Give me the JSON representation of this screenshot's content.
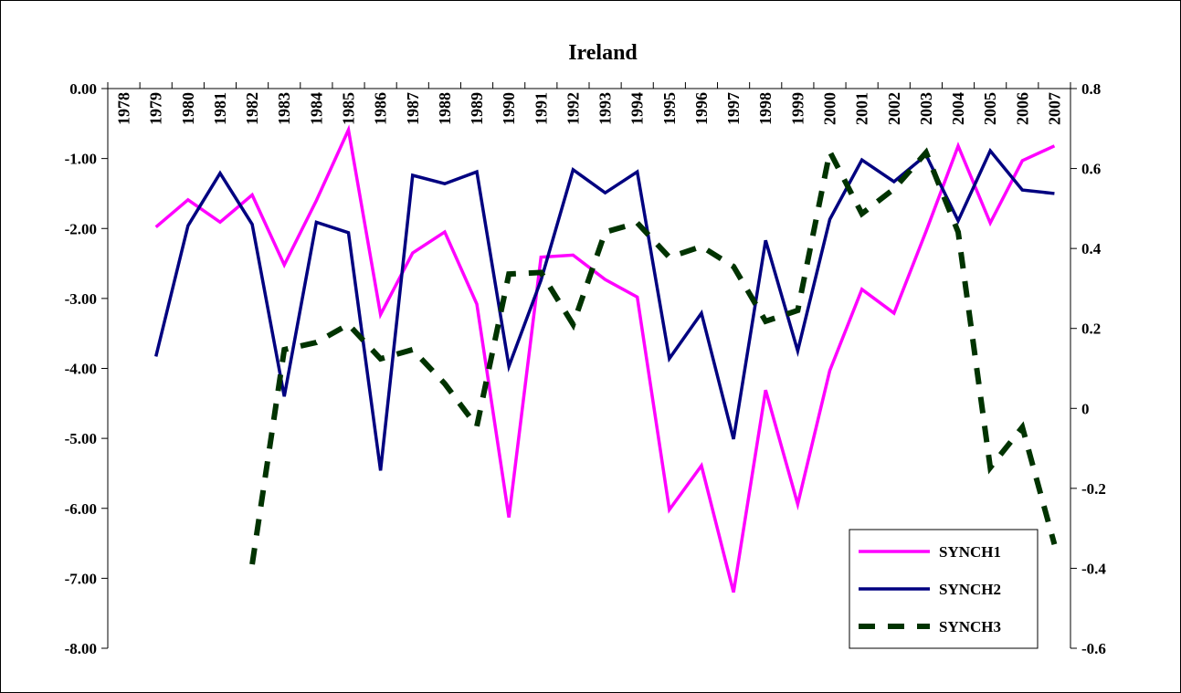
{
  "chart_data": {
    "type": "line",
    "title": "Ireland",
    "categories": [
      "1978",
      "1979",
      "1980",
      "1981",
      "1982",
      "1983",
      "1984",
      "1985",
      "1986",
      "1987",
      "1988",
      "1989",
      "1990",
      "1991",
      "1992",
      "1993",
      "1994",
      "1995",
      "1996",
      "1997",
      "1998",
      "1999",
      "2000",
      "2001",
      "2002",
      "2003",
      "2004",
      "2005",
      "2006",
      "2007"
    ],
    "series": [
      {
        "name": "SYNCH1",
        "color": "#ff00ff",
        "dash": "solid",
        "values": [
          null,
          -1.98,
          -1.59,
          -1.91,
          -1.52,
          -2.52,
          -1.6,
          -0.59,
          -3.23,
          -2.35,
          -2.05,
          -3.08,
          -6.13,
          -2.41,
          -2.38,
          -2.73,
          -2.98,
          -6.02,
          -5.39,
          -7.2,
          -4.31,
          -5.94,
          -4.03,
          -2.87,
          -3.21,
          -2.04,
          -0.82,
          -1.92,
          -1.03,
          -0.82
        ]
      },
      {
        "name": "SYNCH2",
        "color": "#000080",
        "dash": "solid",
        "values": [
          null,
          -3.83,
          -1.96,
          -1.21,
          -1.94,
          -4.4,
          -1.91,
          -2.06,
          -5.46,
          -1.24,
          -1.36,
          -1.19,
          -3.97,
          -2.74,
          -1.16,
          -1.49,
          -1.19,
          -3.86,
          -3.21,
          -5.01,
          -2.17,
          -3.75,
          -1.87,
          -1.02,
          -1.33,
          -0.95,
          -1.89,
          -0.89,
          -1.45,
          -1.5
        ]
      },
      {
        "name": "SYNCH3",
        "color": "#003300",
        "dash": "dashed",
        "axis": "y2",
        "values": [
          null,
          null,
          null,
          null,
          -0.39,
          0.147,
          0.165,
          0.21,
          0.124,
          0.147,
          0.062,
          -0.045,
          0.336,
          0.34,
          0.21,
          0.441,
          0.464,
          0.378,
          0.405,
          0.355,
          0.218,
          0.245,
          0.642,
          0.487,
          0.549,
          0.64,
          0.441,
          -0.148,
          -0.047,
          -0.34
        ]
      }
    ],
    "ylim": [
      -8,
      0
    ],
    "yticks": [
      {
        "value": 0,
        "label": "0.00"
      },
      {
        "value": -1,
        "label": "-1.00"
      },
      {
        "value": -2,
        "label": "-2.00"
      },
      {
        "value": -3,
        "label": "-3.00"
      },
      {
        "value": -4,
        "label": "-4.00"
      },
      {
        "value": -5,
        "label": "-5.00"
      },
      {
        "value": -6,
        "label": "-6.00"
      },
      {
        "value": -7,
        "label": "-7.00"
      },
      {
        "value": -8,
        "label": "-8.00"
      }
    ],
    "y2lim": [
      -0.6,
      0.8
    ],
    "y2ticks": [
      0.8,
      0.6,
      0.4,
      0.2,
      0,
      -0.2,
      -0.4,
      -0.6
    ],
    "legend": "bottom-right"
  }
}
